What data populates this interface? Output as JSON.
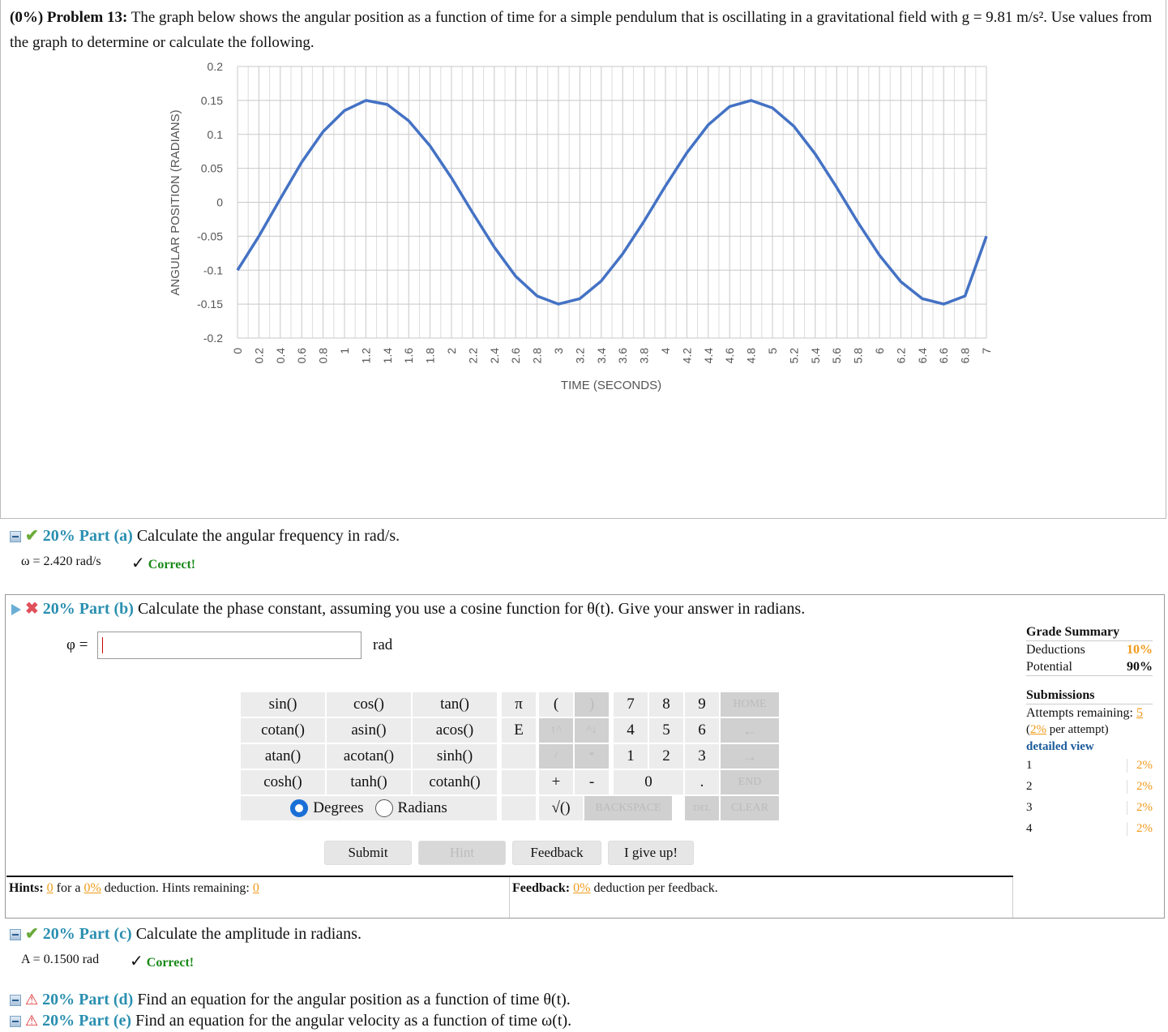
{
  "problem": {
    "label": "(0%) Problem 13:",
    "text": "The graph below shows the angular position as a function of time for a simple pendulum that is oscillating in a gravitational field with g = 9.81 m/s². Use values from the graph to determine or calculate the following."
  },
  "chart_data": {
    "type": "line",
    "title": "",
    "xlabel": "TIME (SECONDS)",
    "ylabel": "ANGULAR POSITION (RADIANS)",
    "xlim": [
      0,
      7
    ],
    "ylim": [
      -0.2,
      0.2
    ],
    "x_ticks": [
      "0",
      "0.2",
      "0.4",
      "0.6",
      "0.8",
      "1",
      "1.2",
      "1.4",
      "1.6",
      "1.8",
      "2",
      "2.2",
      "2.4",
      "2.6",
      "2.8",
      "3",
      "3.2",
      "3.4",
      "3.6",
      "3.8",
      "4",
      "4.2",
      "4.4",
      "4.6",
      "4.8",
      "5",
      "5.2",
      "5.4",
      "5.6",
      "5.8",
      "6",
      "6.2",
      "6.4",
      "6.6",
      "6.8",
      "7"
    ],
    "y_ticks": [
      "0.2",
      "0.15",
      "0.1",
      "0.05",
      "0",
      "-0.05",
      "-0.1",
      "-0.15",
      "-0.2"
    ],
    "grid": true,
    "series": [
      {
        "color": "#4472c4",
        "x": [
          0,
          0.2,
          0.4,
          0.6,
          0.8,
          1.0,
          1.2,
          1.4,
          1.6,
          1.8,
          2.0,
          2.2,
          2.4,
          2.6,
          2.8,
          3.0,
          3.2,
          3.4,
          3.6,
          3.8,
          4.0,
          4.2,
          4.4,
          4.6,
          4.8,
          5.0,
          5.2,
          5.4,
          5.6,
          5.8,
          6.0,
          6.2,
          6.4,
          6.6,
          6.8,
          7.0
        ],
        "y": [
          -0.1,
          -0.05,
          0.005,
          0.059,
          0.104,
          0.135,
          0.15,
          0.144,
          0.12,
          0.083,
          0.036,
          -0.016,
          -0.066,
          -0.109,
          -0.138,
          -0.15,
          -0.142,
          -0.116,
          -0.076,
          -0.028,
          0.024,
          0.073,
          0.114,
          0.141,
          0.15,
          0.139,
          0.112,
          0.071,
          0.022,
          -0.03,
          -0.078,
          -0.117,
          -0.142,
          -0.15,
          -0.138,
          -0.05
        ]
      }
    ]
  },
  "part_a": {
    "pct": "20% Part (a)",
    "text": "Calculate the angular frequency in rad/s.",
    "answer": "ω = 2.420  rad/s",
    "status": "Correct!"
  },
  "part_b": {
    "pct": "20% Part (b)",
    "text": "Calculate the phase constant, assuming you use a cosine function for θ(t). Give your answer in radians.",
    "var_label": "φ =",
    "value": "",
    "unit": "rad"
  },
  "keypad": {
    "functions": [
      "sin()",
      "cos()",
      "tan()",
      "cotan()",
      "asin()",
      "acos()",
      "atan()",
      "acotan()",
      "sinh()",
      "cosh()",
      "tanh()",
      "cotanh()"
    ],
    "pi": "π",
    "e": "E",
    "lparen": "(",
    "rparen": ")",
    "up": "↑^",
    "down": "^↓",
    "slash": "/",
    "star": "*",
    "plus": "+",
    "minus": "-",
    "sqrt": "√()",
    "digits": [
      "7",
      "8",
      "9",
      "4",
      "5",
      "6",
      "1",
      "2",
      "3",
      "0",
      "."
    ],
    "home": "HOME",
    "left": "←",
    "right": "→",
    "end": "END",
    "backspace": "BACKSPACE",
    "del": "DEL",
    "clear": "CLEAR",
    "degrees": "Degrees",
    "radians": "Radians",
    "mode_selected": "Degrees"
  },
  "actions": {
    "submit": "Submit",
    "hint": "Hint",
    "feedback": "Feedback",
    "give_up": "I give up!"
  },
  "hints": {
    "label": "Hints:",
    "count": "0",
    "for_a": "for a",
    "deduction": "0%",
    "deduction_text": "deduction. Hints remaining:",
    "remaining": "0"
  },
  "feedback": {
    "label": "Feedback:",
    "deduction": "0%",
    "text": "deduction per feedback."
  },
  "grade_summary": {
    "title": "Grade Summary",
    "deductions_label": "Deductions",
    "deductions_value": "10%",
    "potential_label": "Potential",
    "potential_value": "90%",
    "submissions_title": "Submissions",
    "attempts_label": "Attempts remaining:",
    "attempts_value": "5",
    "per_attempt_pct": "2%",
    "per_attempt_text": "per attempt)",
    "detailed_view": "detailed view",
    "attempts": [
      {
        "n": "1",
        "pct": "2%"
      },
      {
        "n": "2",
        "pct": "2%"
      },
      {
        "n": "3",
        "pct": "2%"
      },
      {
        "n": "4",
        "pct": "2%"
      }
    ]
  },
  "part_c": {
    "pct": "20% Part (c)",
    "text": "Calculate the amplitude in radians.",
    "answer": "A = 0.1500  rad",
    "status": "Correct!"
  },
  "part_d": {
    "pct": "20% Part (d)",
    "text": "Find an equation for the angular position as a function of time θ(t)."
  },
  "part_e": {
    "pct": "20% Part (e)",
    "text": "Find an equation for the angular velocity as a function of time ω(t)."
  }
}
